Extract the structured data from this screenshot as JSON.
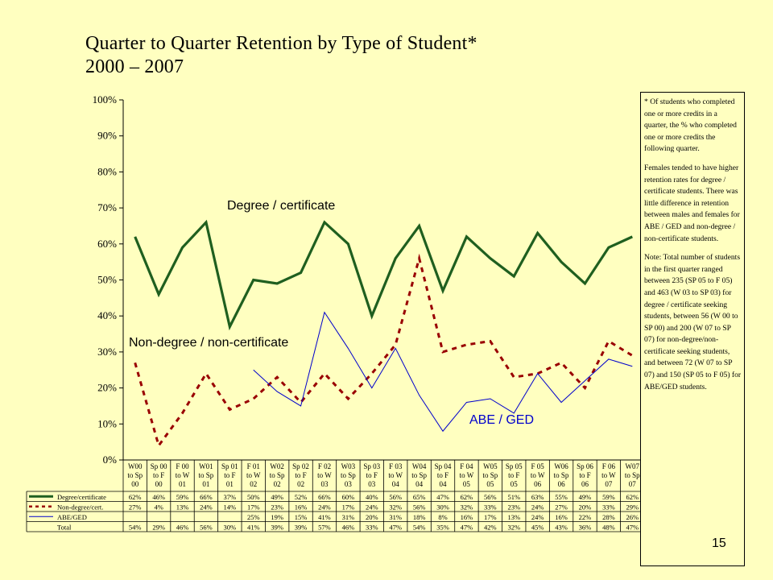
{
  "title_line1": "Quarter to Quarter Retention by Type of Student*",
  "title_line2": "2000 – 2007",
  "note_p1": "* Of students who completed one or more credits in a quarter, the % who completed one or more credits the following quarter.",
  "note_p2": "Females tended to have higher retention rates for degree / certificate students. There was little difference in retention between males and females for ABE / GED and non-degree / non-certificate students.",
  "note_p3": "Note: Total number of students in the first quarter ranged between 235 (SP 05 to F 05) and 463 (W 03 to SP 03) for degree / certificate seeking students, between 56 (W 00 to SP 00) and 200 (W 07 to SP 07) for non-degree/non-certificate seeking students, and between 72 (W 07 to SP 07) and 150 (SP 05 to F 05) for ABE/GED students.",
  "page_number": "15",
  "chart_data": {
    "type": "line",
    "categories": [
      [
        "W00",
        "to Sp",
        "00"
      ],
      [
        "Sp 00",
        "to F",
        "00"
      ],
      [
        "F 00",
        "to W",
        "01"
      ],
      [
        "W01",
        "to Sp",
        "01"
      ],
      [
        "Sp 01",
        "to F",
        "01"
      ],
      [
        "F 01",
        "to W",
        "02"
      ],
      [
        "W02",
        "to Sp",
        "02"
      ],
      [
        "Sp 02",
        "to F",
        "02"
      ],
      [
        "F 02",
        "to W",
        "03"
      ],
      [
        "W03",
        "to Sp",
        "03"
      ],
      [
        "Sp 03",
        "to F",
        "03"
      ],
      [
        "F 03",
        "to W",
        "04"
      ],
      [
        "W04",
        "to Sp",
        "04"
      ],
      [
        "Sp 04",
        "to F",
        "04"
      ],
      [
        "F 04",
        "to W",
        "05"
      ],
      [
        "W05",
        "to Sp",
        "05"
      ],
      [
        "Sp 05",
        "to F",
        "05"
      ],
      [
        "F 05",
        "to W",
        "06"
      ],
      [
        "W06",
        "to Sp",
        "06"
      ],
      [
        "Sp 06",
        "to F",
        "06"
      ],
      [
        "F 06",
        "to W",
        "07"
      ],
      [
        "W07",
        "to Sp",
        "07"
      ]
    ],
    "y_ticks": [
      "0%",
      "10%",
      "20%",
      "30%",
      "40%",
      "50%",
      "60%",
      "70%",
      "80%",
      "90%",
      "100%"
    ],
    "ylim": [
      0,
      100
    ],
    "series": [
      {
        "name": "Degree/certificate",
        "color": "#1F5F1F",
        "style": "solid-thick",
        "values": [
          62,
          46,
          59,
          66,
          37,
          50,
          49,
          52,
          66,
          60,
          40,
          56,
          65,
          47,
          62,
          56,
          51,
          63,
          55,
          49,
          59,
          62
        ],
        "labels": [
          "62%",
          "46%",
          "59%",
          "66%",
          "37%",
          "50%",
          "49%",
          "52%",
          "66%",
          "60%",
          "40%",
          "56%",
          "65%",
          "47%",
          "62%",
          "56%",
          "51%",
          "63%",
          "55%",
          "49%",
          "59%",
          "62%"
        ]
      },
      {
        "name": "Non-degree/cert.",
        "color": "#990000",
        "style": "dashed",
        "values": [
          27,
          4,
          13,
          24,
          14,
          17,
          23,
          16,
          24,
          17,
          24,
          32,
          56,
          30,
          32,
          33,
          23,
          24,
          27,
          20,
          33,
          29
        ],
        "labels": [
          "27%",
          "4%",
          "13%",
          "24%",
          "14%",
          "17%",
          "23%",
          "16%",
          "24%",
          "17%",
          "24%",
          "32%",
          "56%",
          "30%",
          "32%",
          "33%",
          "23%",
          "24%",
          "27%",
          "20%",
          "33%",
          "29%"
        ]
      },
      {
        "name": "ABE/GED",
        "color": "#0000CC",
        "style": "thin",
        "values": [
          null,
          null,
          null,
          null,
          null,
          25,
          19,
          15,
          41,
          31,
          20,
          31,
          18,
          8,
          16,
          17,
          13,
          24,
          16,
          22,
          28,
          26
        ],
        "labels": [
          "",
          "",
          "",
          "",
          "",
          "25%",
          "19%",
          "15%",
          "41%",
          "31%",
          "20%",
          "31%",
          "18%",
          "8%",
          "16%",
          "17%",
          "13%",
          "24%",
          "16%",
          "22%",
          "28%",
          "26%"
        ]
      },
      {
        "name": "Total",
        "color": "",
        "values": [
          54,
          29,
          46,
          56,
          30,
          41,
          39,
          39,
          57,
          46,
          33,
          47,
          54,
          35,
          47,
          42,
          32,
          45,
          43,
          36,
          48,
          47
        ],
        "labels": [
          "54%",
          "29%",
          "46%",
          "56%",
          "30%",
          "41%",
          "39%",
          "39%",
          "57%",
          "46%",
          "33%",
          "47%",
          "54%",
          "35%",
          "47%",
          "42%",
          "32%",
          "45%",
          "43%",
          "36%",
          "48%",
          "47%"
        ]
      }
    ],
    "annotations": [
      {
        "text": "Degree / certificate",
        "series": 0
      },
      {
        "text": "Non-degree / non-certificate",
        "series": 1
      },
      {
        "text": "ABE / GED",
        "series": 2
      }
    ]
  }
}
